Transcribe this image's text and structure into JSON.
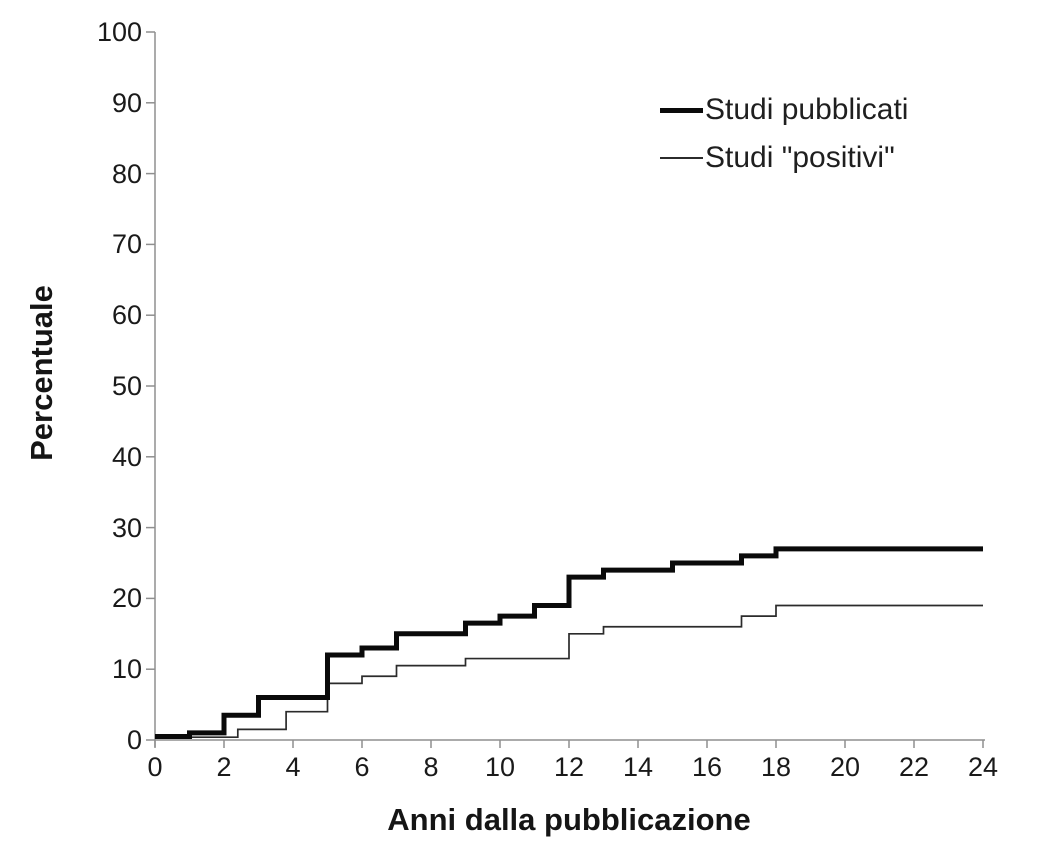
{
  "figure": {
    "background": "#ffffff",
    "axis_color": "#8f8f8f",
    "curve_color": "#0a0a0a",
    "text_color": "#1a1a1a"
  },
  "chart_data": {
    "type": "line",
    "line_style": "step-after",
    "title": "",
    "xlabel": "Anni dalla pubblicazione",
    "ylabel": "Percentuale",
    "xlim": [
      0,
      24
    ],
    "ylim": [
      0,
      100
    ],
    "x_ticks": [
      0,
      2,
      4,
      6,
      8,
      10,
      12,
      14,
      16,
      18,
      20,
      22,
      24
    ],
    "y_ticks": [
      0,
      10,
      20,
      30,
      40,
      50,
      60,
      70,
      80,
      90,
      100
    ],
    "grid": false,
    "legend_position": "inside-top-right",
    "series": [
      {
        "name": "Studi pubblicati",
        "color": "#0a0a0a",
        "thickness": "thick",
        "stroke_width": 5,
        "steps": [
          [
            0,
            0.5
          ],
          [
            1,
            1
          ],
          [
            2,
            3.5
          ],
          [
            3,
            6
          ],
          [
            5,
            12
          ],
          [
            6,
            13
          ],
          [
            7,
            15
          ],
          [
            9,
            16.5
          ],
          [
            10,
            17.5
          ],
          [
            11,
            19
          ],
          [
            12,
            23
          ],
          [
            13,
            24
          ],
          [
            15,
            25
          ],
          [
            17,
            26
          ],
          [
            18,
            27
          ]
        ],
        "end_x": 24,
        "final_value": 27
      },
      {
        "name": "Studi \"positivi\"",
        "color": "#2b2b2b",
        "thickness": "thin",
        "stroke_width": 1.7,
        "steps": [
          [
            0,
            0.4
          ],
          [
            2.4,
            1.5
          ],
          [
            3.8,
            4
          ],
          [
            5,
            8
          ],
          [
            6,
            9
          ],
          [
            7,
            10.5
          ],
          [
            9,
            11.5
          ],
          [
            12,
            15
          ],
          [
            13,
            16
          ],
          [
            17,
            17.5
          ],
          [
            18,
            19
          ]
        ],
        "end_x": 24,
        "final_value": 19
      }
    ]
  },
  "legend": {
    "items": [
      {
        "label": "Studi pubblicati",
        "swatch": "thick-line"
      },
      {
        "label": "Studi \"positivi\"",
        "swatch": "thin-line"
      }
    ]
  }
}
